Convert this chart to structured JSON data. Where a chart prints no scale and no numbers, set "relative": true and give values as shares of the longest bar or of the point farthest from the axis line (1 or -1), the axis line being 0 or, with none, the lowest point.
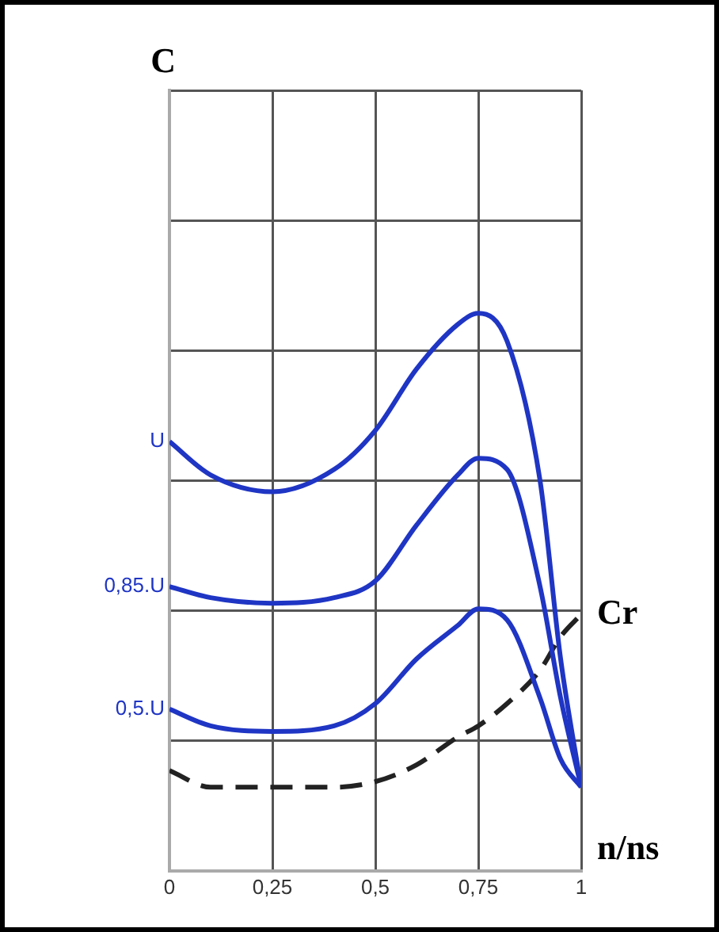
{
  "chart_data": {
    "type": "line",
    "relative": true,
    "annotations": [
      "C"
    ],
    "xlabel": "n/ns",
    "grid": true,
    "legend": false,
    "marker": "none",
    "xlim": [
      0,
      1
    ],
    "xticks": [
      0,
      {
        "value": 0.25,
        "label": "0,25"
      },
      {
        "value": 0.5,
        "label": "0,5"
      },
      {
        "value": 0.75,
        "label": "0,75"
      },
      1
    ],
    "x": [
      0,
      0.1,
      0.25,
      0.4,
      0.5,
      0.6,
      0.7,
      0.75,
      0.82,
      0.9,
      0.95,
      1
    ],
    "series": [
      {
        "name": "U",
        "color": "#1f35c4",
        "values": [
          0.77,
          0.71,
          0.68,
          0.72,
          0.79,
          0.9,
          0.98,
          1,
          0.95,
          0.7,
          0.38,
          0.15
        ]
      },
      {
        "name": "0,85.U",
        "color": "#1f35c4",
        "values": [
          0.51,
          0.49,
          0.48,
          0.49,
          0.52,
          0.62,
          0.71,
          0.74,
          0.72,
          0.51,
          0.31,
          0.15
        ]
      },
      {
        "name": "0,5.U",
        "color": "#1f35c4",
        "values": [
          0.29,
          0.26,
          0.25,
          0.26,
          0.3,
          0.38,
          0.44,
          0.47,
          0.45,
          0.31,
          0.2,
          0.15
        ]
      },
      {
        "name": "Cr",
        "color": "#222222",
        "line_style": "dashed",
        "values": [
          0.18,
          0.15,
          0.15,
          0.15,
          0.16,
          0.19,
          0.24,
          0.26,
          0.3,
          0.36,
          0.42,
          0.46
        ]
      }
    ]
  }
}
